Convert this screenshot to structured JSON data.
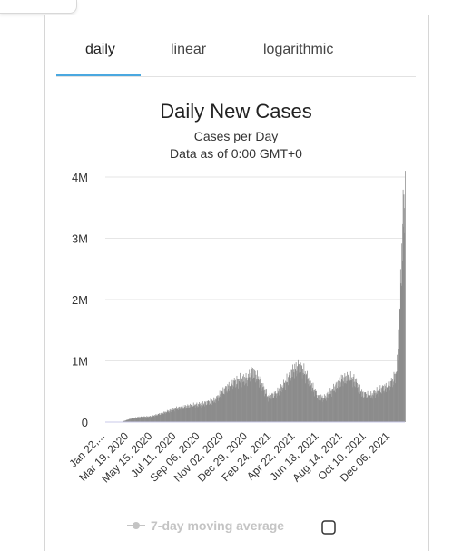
{
  "tabs": [
    {
      "label": "daily",
      "active": true
    },
    {
      "label": "linear",
      "active": false
    },
    {
      "label": "logarithmic",
      "active": false
    }
  ],
  "colors": {
    "accent": "#4aa8e0",
    "bars": "#8c8c8c",
    "grid": "#e6e6e6",
    "axis": "#c8c8e8"
  },
  "legend": {
    "label": "7-day moving average",
    "checkbox_checked": false
  },
  "chart_data": {
    "type": "bar",
    "title": "Daily New Cases",
    "subtitle_1": "Cases per Day",
    "subtitle_2": "Data as of 0:00 GMT+0",
    "xlabel": "",
    "ylabel": "",
    "ylim": [
      0,
      4000000
    ],
    "y_ticks": [
      "0",
      "1M",
      "2M",
      "3M",
      "4M"
    ],
    "y_tick_values": [
      0,
      1000000,
      2000000,
      3000000,
      4000000
    ],
    "grid": true,
    "x_start": "2020-01-22",
    "x_end": "2022-01-10",
    "x_tick_labels": [
      "Jan 22,...",
      "Mar 19, 2020",
      "May 15, 2020",
      "Jul 11, 2020",
      "Sep 06, 2020",
      "Nov 02, 2020",
      "Dec 29, 2020",
      "Feb 24, 2021",
      "Apr 22, 2021",
      "Jun 18, 2021",
      "Aug 14, 2021",
      "Oct 10, 2021",
      "Dec 06, 2021"
    ],
    "x_tick_dates": [
      "2020-01-22",
      "2020-03-19",
      "2020-05-15",
      "2020-07-11",
      "2020-09-06",
      "2020-11-02",
      "2020-12-29",
      "2021-02-24",
      "2021-04-22",
      "2021-06-18",
      "2021-08-14",
      "2021-10-10",
      "2021-12-06"
    ],
    "series": [
      {
        "x": [
          "2020-01-22",
          "2020-03-01",
          "2020-03-20",
          "2020-04-10",
          "2020-05-10",
          "2020-06-10",
          "2020-07-10",
          "2020-08-10",
          "2020-09-10",
          "2020-10-10",
          "2020-10-31",
          "2020-11-20",
          "2020-12-10",
          "2020-12-28",
          "2021-01-08",
          "2021-01-25",
          "2021-02-15",
          "2021-03-05",
          "2021-03-25",
          "2021-04-15",
          "2021-04-28",
          "2021-05-10",
          "2021-05-30",
          "2021-06-15",
          "2021-07-01",
          "2021-07-20",
          "2021-08-10",
          "2021-08-25",
          "2021-09-10",
          "2021-09-30",
          "2021-10-20",
          "2021-11-10",
          "2021-11-30",
          "2021-12-10",
          "2021-12-20",
          "2021-12-26",
          "2021-12-30",
          "2022-01-03",
          "2022-01-06",
          "2022-01-10"
        ],
        "values": [
          0,
          5000,
          50000,
          80000,
          90000,
          150000,
          220000,
          260000,
          290000,
          350000,
          500000,
          620000,
          680000,
          700000,
          820000,
          680000,
          400000,
          450000,
          600000,
          820000,
          890000,
          840000,
          600000,
          400000,
          390000,
          520000,
          680000,
          720000,
          680000,
          450000,
          430000,
          520000,
          580000,
          650000,
          800000,
          1200000,
          2200000,
          2900000,
          3500000,
          3700000
        ]
      }
    ]
  }
}
